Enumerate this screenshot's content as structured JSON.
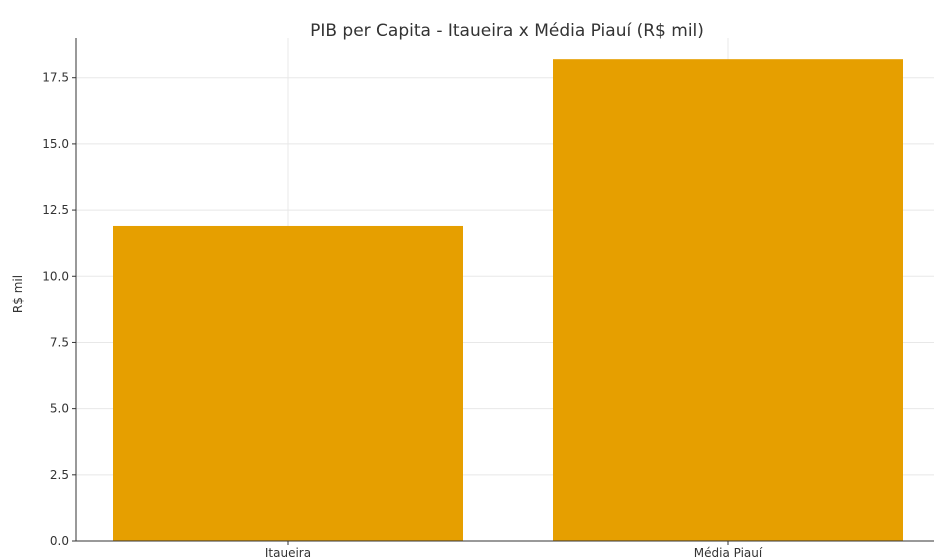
{
  "chart_data": {
    "type": "bar",
    "title": "PIB per Capita - Itaueira x Média Piauí (R$ mil)",
    "xlabel": "",
    "ylabel": "R$ mil",
    "categories": [
      "Itaueira",
      "Média Piauí"
    ],
    "values": [
      11.9,
      18.2
    ],
    "ylim": [
      0,
      19.0
    ],
    "yticks": [
      0.0,
      2.5,
      5.0,
      7.5,
      10.0,
      12.5,
      15.0,
      17.5
    ],
    "ytick_labels": [
      "0.0",
      "2.5",
      "5.0",
      "7.5",
      "10.0",
      "12.5",
      "15.0",
      "17.5"
    ],
    "grid": true,
    "bar_color": "#E69F00"
  }
}
